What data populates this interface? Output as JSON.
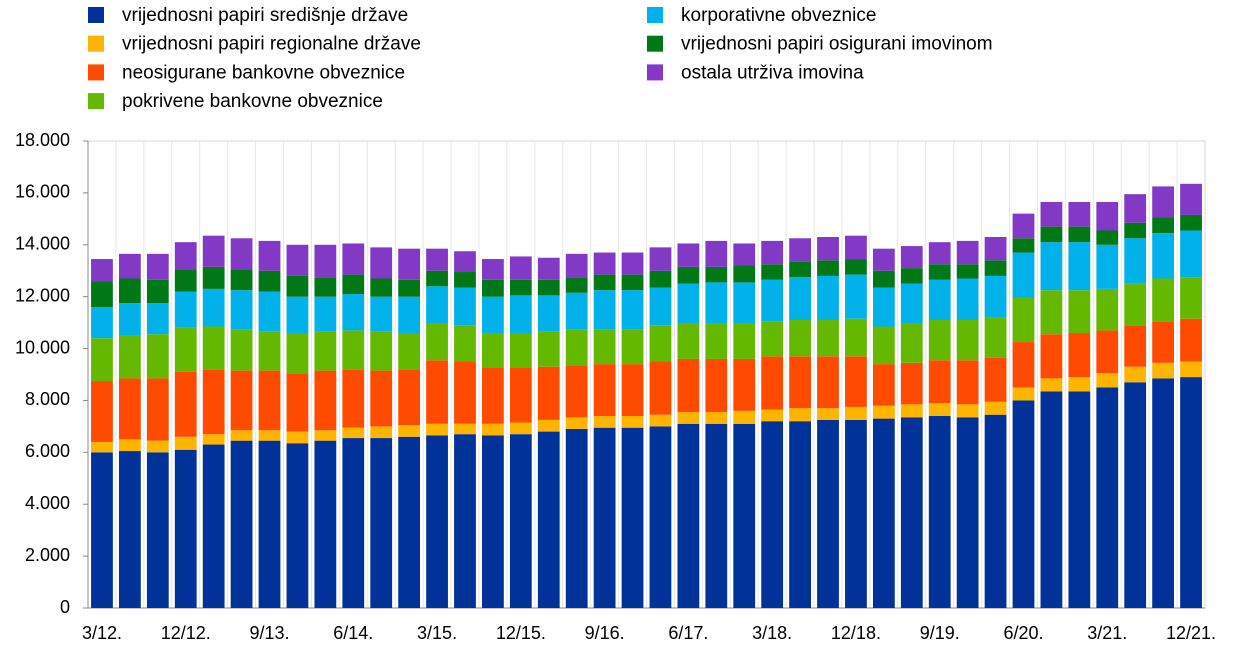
{
  "chart_data": {
    "type": "stacked_bar",
    "categories": [
      "3/12.",
      null,
      null,
      "12/12.",
      null,
      null,
      "9/13.",
      null,
      null,
      "6/14.",
      null,
      null,
      "3/15.",
      null,
      null,
      "12/15.",
      null,
      null,
      "9/16.",
      null,
      null,
      "6/17.",
      null,
      null,
      "3/18.",
      null,
      null,
      "12/18.",
      null,
      null,
      "9/19.",
      null,
      null,
      "6/20.",
      null,
      null,
      "3/21.",
      null,
      null,
      "12/21."
    ],
    "series": [
      {
        "name": "vrijednosni papiri središnje države",
        "color": "#003299",
        "values": [
          6000,
          6050,
          6000,
          6100,
          6300,
          6450,
          6450,
          6350,
          6450,
          6550,
          6550,
          6600,
          6650,
          6700,
          6650,
          6700,
          6800,
          6900,
          6950,
          6950,
          7000,
          7100,
          7100,
          7100,
          7200,
          7200,
          7250,
          7250,
          7300,
          7350,
          7400,
          7350,
          7450,
          8000,
          8350,
          8350,
          8500,
          8700,
          8850,
          8900
        ]
      },
      {
        "name": "vrijednosni papiri regionalne države",
        "color": "#ffb400",
        "values": [
          400,
          450,
          450,
          500,
          400,
          400,
          400,
          450,
          400,
          400,
          450,
          450,
          450,
          400,
          450,
          450,
          450,
          450,
          450,
          450,
          450,
          450,
          450,
          500,
          450,
          500,
          450,
          500,
          500,
          500,
          500,
          500,
          500,
          500,
          500,
          550,
          550,
          600,
          600,
          600
        ]
      },
      {
        "name": "neosigurane bankovne obveznice",
        "color": "#ff4b00",
        "values": [
          2350,
          2350,
          2400,
          2500,
          2500,
          2300,
          2300,
          2250,
          2300,
          2250,
          2150,
          2150,
          2450,
          2400,
          2150,
          2100,
          2050,
          2000,
          2000,
          2000,
          2050,
          2050,
          2050,
          2000,
          2050,
          2000,
          2000,
          1950,
          1600,
          1600,
          1650,
          1700,
          1700,
          1750,
          1700,
          1700,
          1650,
          1600,
          1600,
          1650
        ]
      },
      {
        "name": "pokrivene bankovne obveznice",
        "color": "#65b800",
        "values": [
          1650,
          1650,
          1700,
          1700,
          1650,
          1600,
          1500,
          1550,
          1500,
          1500,
          1500,
          1400,
          1400,
          1400,
          1350,
          1350,
          1350,
          1400,
          1350,
          1350,
          1400,
          1350,
          1350,
          1350,
          1350,
          1400,
          1400,
          1450,
          1450,
          1500,
          1550,
          1550,
          1550,
          1700,
          1700,
          1650,
          1600,
          1600,
          1650,
          1600
        ]
      },
      {
        "name": "korporativne obveznice",
        "color": "#00b1ea",
        "values": [
          1200,
          1250,
          1200,
          1400,
          1450,
          1500,
          1550,
          1400,
          1350,
          1400,
          1350,
          1400,
          1450,
          1450,
          1400,
          1450,
          1400,
          1400,
          1500,
          1500,
          1450,
          1550,
          1600,
          1600,
          1600,
          1650,
          1700,
          1700,
          1500,
          1550,
          1550,
          1600,
          1600,
          1750,
          1850,
          1850,
          1700,
          1750,
          1750,
          1800
        ]
      },
      {
        "name": "vrijednosni papiri osigurani imovinom",
        "color": "#007816",
        "values": [
          1000,
          950,
          900,
          850,
          850,
          800,
          800,
          800,
          750,
          750,
          700,
          650,
          600,
          600,
          650,
          600,
          600,
          600,
          600,
          600,
          650,
          650,
          600,
          650,
          600,
          600,
          600,
          600,
          650,
          600,
          600,
          550,
          600,
          550,
          600,
          600,
          550,
          600,
          600,
          600
        ]
      },
      {
        "name": "ostala utrživa imovina",
        "color": "#8139c6",
        "values": [
          850,
          950,
          1000,
          1050,
          1200,
          1200,
          1150,
          1200,
          1250,
          1200,
          1200,
          1200,
          850,
          800,
          800,
          900,
          850,
          900,
          850,
          850,
          900,
          900,
          1000,
          850,
          900,
          900,
          900,
          900,
          850,
          850,
          850,
          900,
          900,
          950,
          950,
          950,
          1100,
          1100,
          1200,
          1200
        ]
      }
    ],
    "ylim": [
      0,
      18000
    ],
    "yticks": [
      0,
      {
        "value": 2000,
        "label": "2.000"
      },
      {
        "value": 4000,
        "label": "4.000"
      },
      {
        "value": 6000,
        "label": "6.000"
      },
      {
        "value": 8000,
        "label": "8.000"
      },
      {
        "value": 10000,
        "label": "10.000"
      },
      {
        "value": 12000,
        "label": "12.000"
      },
      {
        "value": 14000,
        "label": "14.000"
      },
      {
        "value": 16000,
        "label": "16.000"
      },
      {
        "value": 18000,
        "label": "18.000"
      }
    ]
  }
}
